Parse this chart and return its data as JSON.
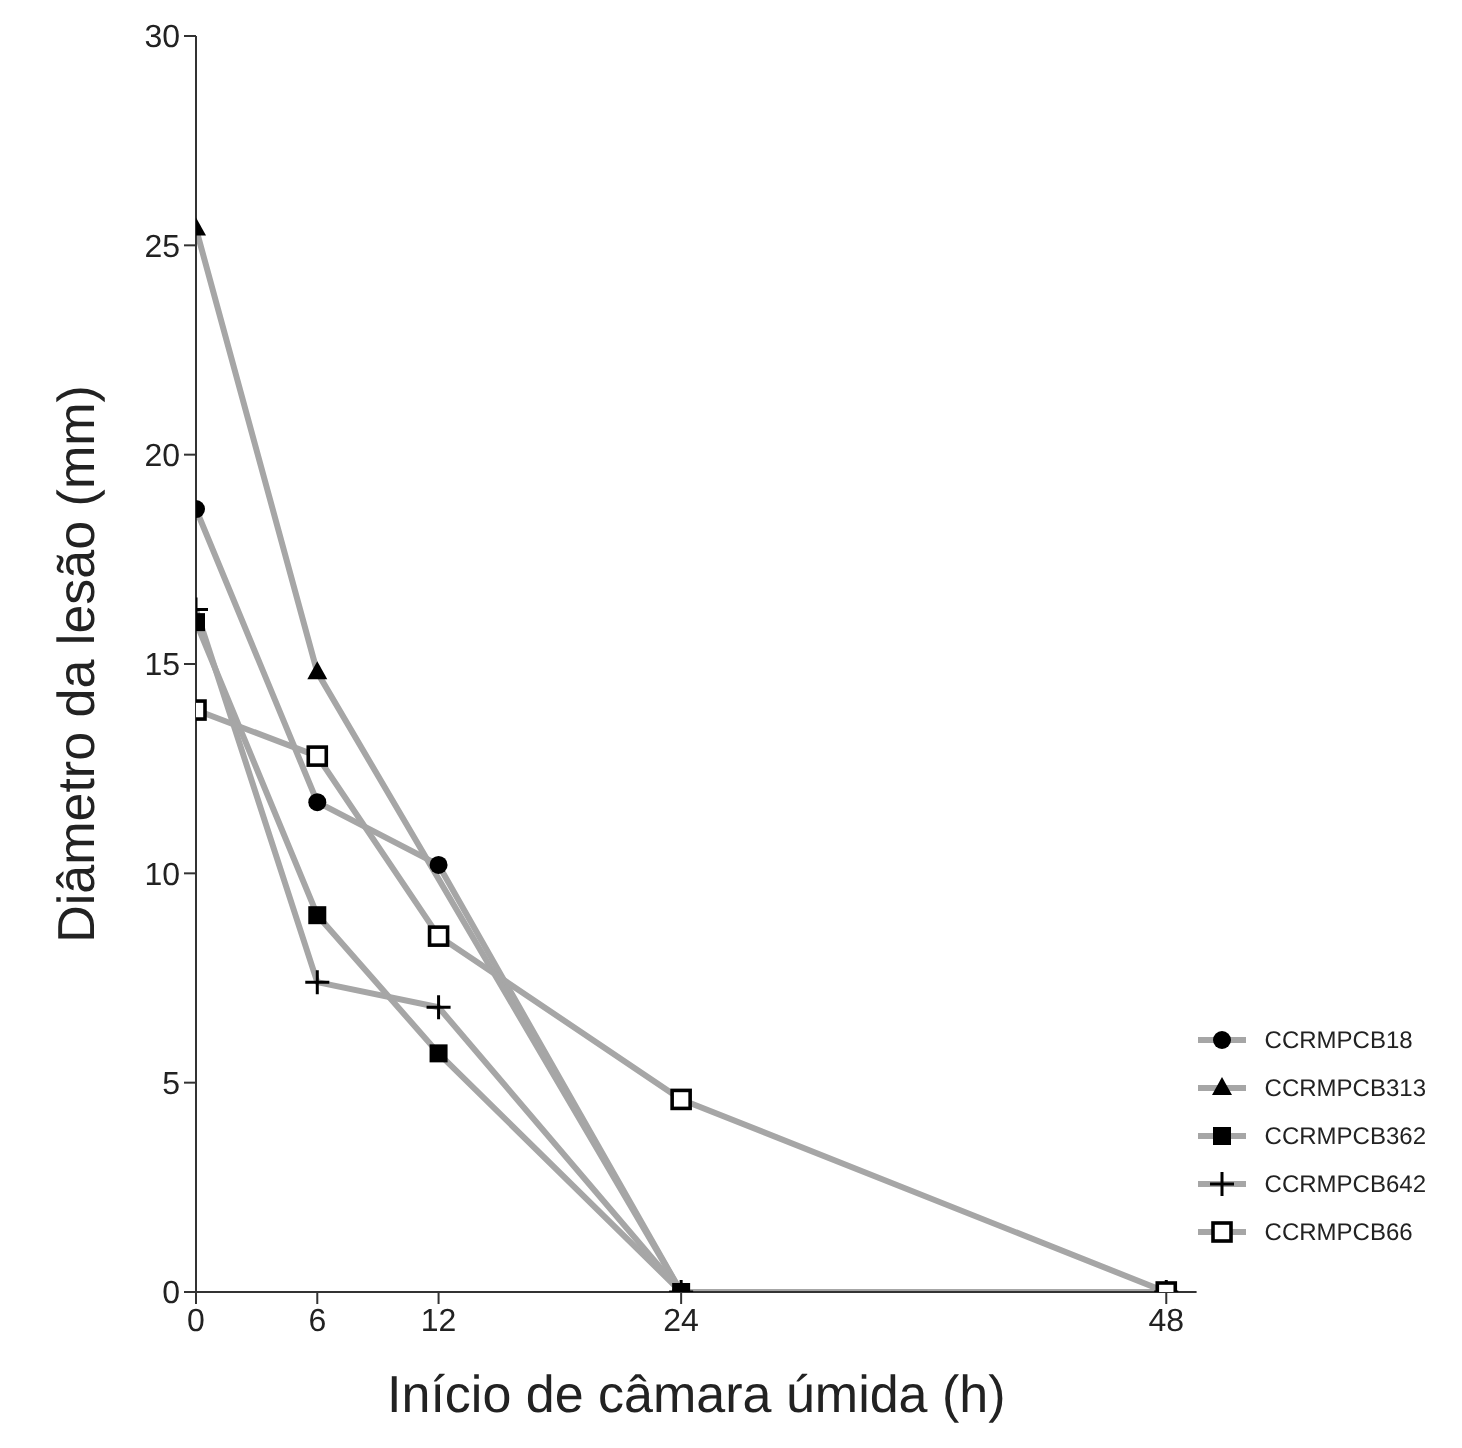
{
  "chart_data": {
    "type": "line",
    "xlabel": "Início de câmara úmida (h)",
    "ylabel": "Diâmetro da lesão (mm)",
    "x": [
      0,
      6,
      12,
      24,
      48
    ],
    "xlim": [
      0,
      49.5
    ],
    "xticks": [
      0,
      6,
      12,
      24,
      48
    ],
    "ylim": [
      0,
      30
    ],
    "yticks": [
      0,
      5,
      10,
      15,
      20,
      25,
      30
    ],
    "legend": "right",
    "series": [
      {
        "name": "CCRMPCB18",
        "color": "#a6a6a6",
        "marker": "circle",
        "values": [
          18.7,
          11.7,
          10.2,
          0,
          0
        ]
      },
      {
        "name": "CCRMPCB313",
        "color": "#a6a6a6",
        "marker": "triangle",
        "x": [
          0,
          6,
          24,
          48
        ],
        "values": [
          25.4,
          14.8,
          0,
          0
        ]
      },
      {
        "name": "CCRMPCB362",
        "color": "#a6a6a6",
        "marker": "square",
        "values": [
          16.0,
          9.0,
          5.7,
          0,
          0
        ]
      },
      {
        "name": "CCRMPCB642",
        "color": "#a6a6a6",
        "marker": "cross",
        "values": [
          16.3,
          7.4,
          6.8,
          0,
          0
        ]
      },
      {
        "name": "CCRMPCB66",
        "color": "#a6a6a6",
        "marker": "square",
        "values": [
          13.9,
          12.8,
          8.5,
          4.6,
          0
        ]
      }
    ]
  }
}
